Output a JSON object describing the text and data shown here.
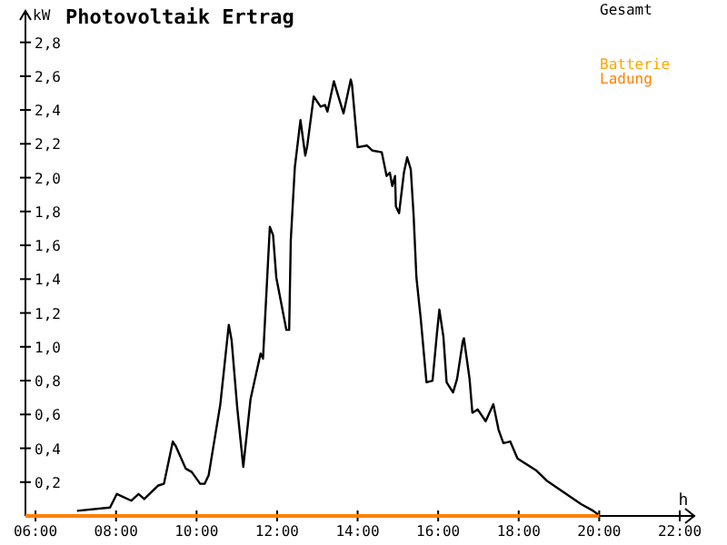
{
  "chart_data": {
    "type": "line",
    "title": "Photovoltaik Ertrag",
    "xlabel": "h",
    "ylabel": "kW",
    "xlim": [
      5.75,
      22
    ],
    "ylim": [
      0,
      2.9
    ],
    "xticks": [
      {
        "value": 6,
        "label": "06:00"
      },
      {
        "value": 8,
        "label": "08:00"
      },
      {
        "value": 10,
        "label": "10:00"
      },
      {
        "value": 12,
        "label": "12:00"
      },
      {
        "value": 14,
        "label": "14:00"
      },
      {
        "value": 16,
        "label": "16:00"
      },
      {
        "value": 18,
        "label": "18:00"
      },
      {
        "value": 20,
        "label": "20:00"
      },
      {
        "value": 22,
        "label": "22:00"
      }
    ],
    "yticks": [
      {
        "value": 0.2,
        "label": "0,2"
      },
      {
        "value": 0.4,
        "label": "0,4"
      },
      {
        "value": 0.6,
        "label": "0,6"
      },
      {
        "value": 0.8,
        "label": "0,8"
      },
      {
        "value": 1.0,
        "label": "1,0"
      },
      {
        "value": 1.2,
        "label": "1,2"
      },
      {
        "value": 1.4,
        "label": "1,4"
      },
      {
        "value": 1.6,
        "label": "1,6"
      },
      {
        "value": 1.8,
        "label": "1,8"
      },
      {
        "value": 2.0,
        "label": "2,0"
      },
      {
        "value": 2.2,
        "label": "2,2"
      },
      {
        "value": 2.4,
        "label": "2,4"
      },
      {
        "value": 2.6,
        "label": "2,6"
      },
      {
        "value": 2.8,
        "label": "2,8"
      }
    ],
    "legend": "top right",
    "grid": false,
    "series": [
      {
        "name": "Gesamt",
        "color": "#000000",
        "x": [
          7.03,
          7.85,
          8.02,
          8.38,
          8.56,
          8.7,
          9.05,
          9.19,
          9.41,
          9.49,
          9.73,
          9.88,
          10.09,
          10.2,
          10.3,
          10.59,
          10.8,
          10.87,
          11.01,
          11.16,
          11.34,
          11.59,
          11.65,
          11.82,
          11.9,
          11.98,
          12.23,
          12.3,
          12.34,
          12.44,
          12.58,
          12.7,
          12.75,
          12.91,
          13.08,
          13.19,
          13.25,
          13.41,
          13.51,
          13.65,
          13.83,
          13.86,
          14.0,
          14.23,
          14.37,
          14.6,
          14.72,
          14.8,
          14.86,
          14.93,
          14.95,
          15.03,
          15.15,
          15.23,
          15.32,
          15.39,
          15.46,
          15.57,
          15.71,
          15.86,
          15.97,
          16.03,
          16.13,
          16.21,
          16.37,
          16.47,
          16.61,
          16.64,
          16.78,
          16.85,
          16.98,
          17.18,
          17.37,
          17.5,
          17.62,
          17.79,
          17.97,
          18.1,
          18.43,
          18.69,
          19.12,
          19.55,
          19.85,
          19.97
        ],
        "values": [
          0.03,
          0.05,
          0.13,
          0.09,
          0.13,
          0.1,
          0.18,
          0.19,
          0.44,
          0.41,
          0.28,
          0.26,
          0.19,
          0.19,
          0.24,
          0.66,
          1.13,
          1.04,
          0.64,
          0.29,
          0.69,
          0.96,
          0.93,
          1.71,
          1.66,
          1.41,
          1.1,
          1.1,
          1.63,
          2.06,
          2.34,
          2.13,
          2.19,
          2.48,
          2.42,
          2.43,
          2.39,
          2.57,
          2.49,
          2.38,
          2.58,
          2.55,
          2.18,
          2.19,
          2.16,
          2.15,
          2.01,
          2.03,
          1.95,
          2.01,
          1.83,
          1.79,
          2.03,
          2.12,
          2.05,
          1.78,
          1.41,
          1.16,
          0.79,
          0.8,
          1.08,
          1.22,
          1.06,
          0.79,
          0.73,
          0.81,
          1.03,
          1.05,
          0.81,
          0.61,
          0.63,
          0.56,
          0.66,
          0.51,
          0.43,
          0.44,
          0.34,
          0.32,
          0.27,
          0.21,
          0.14,
          0.07,
          0.03,
          0.01
        ]
      },
      {
        "name": "Batterie",
        "color": "#ffa500"
      },
      {
        "name": "Ladung",
        "color": "#ff8000",
        "x": [
          5.75,
          20
        ],
        "values": [
          0,
          0
        ]
      }
    ]
  }
}
